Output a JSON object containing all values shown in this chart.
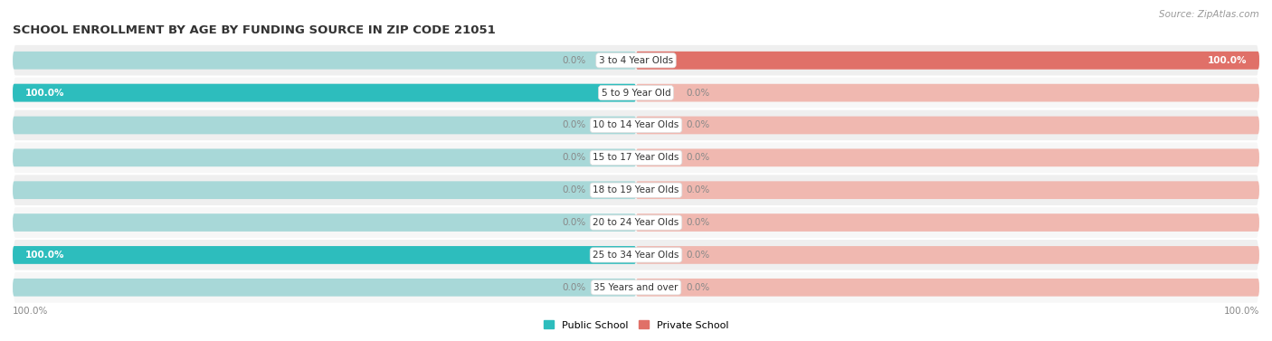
{
  "title": "SCHOOL ENROLLMENT BY AGE BY FUNDING SOURCE IN ZIP CODE 21051",
  "source": "Source: ZipAtlas.com",
  "categories": [
    "3 to 4 Year Olds",
    "5 to 9 Year Old",
    "10 to 14 Year Olds",
    "15 to 17 Year Olds",
    "18 to 19 Year Olds",
    "20 to 24 Year Olds",
    "25 to 34 Year Olds",
    "35 Years and over"
  ],
  "public_values": [
    0.0,
    100.0,
    0.0,
    0.0,
    0.0,
    0.0,
    100.0,
    0.0
  ],
  "private_values": [
    100.0,
    0.0,
    0.0,
    0.0,
    0.0,
    0.0,
    0.0,
    0.0
  ],
  "public_color": "#2DBDBD",
  "private_color": "#E07068",
  "public_color_light": "#A8D8D8",
  "private_color_light": "#F0B8B0",
  "row_bg_even": "#EFEFEF",
  "row_bg_odd": "#F7F7F7",
  "label_fontsize": 7.5,
  "title_fontsize": 9.5,
  "source_fontsize": 7.5,
  "legend_fontsize": 8,
  "value_color_inside": "#FFFFFF",
  "value_color_outside": "#888888",
  "small_bar_pct": 10
}
